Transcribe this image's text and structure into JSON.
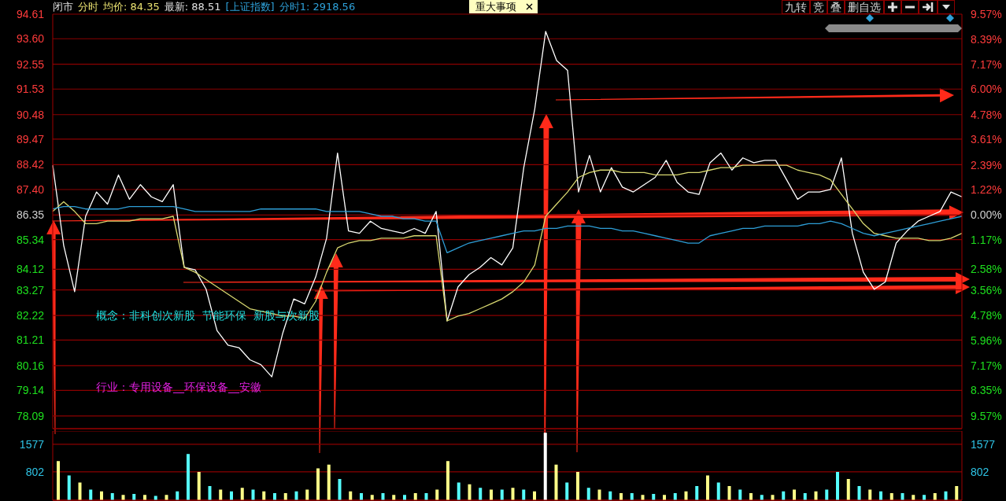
{
  "chart_data": [
    {
      "type": "line",
      "annotations": [
        "闭市",
        "分时",
        "均价: 84.35",
        "最新: 88.51",
        "[上证指数]",
        "分时1: 2918.56",
        "重大事项",
        "九转",
        "竞",
        "叠",
        "删自选",
        "概念：非科创次新股  节能环保  新股与次新股",
        "行业：专用设备__环保设备__安徽"
      ],
      "categories": [
        null,
        null,
        null,
        null,
        null,
        null,
        null,
        null,
        null,
        null,
        null,
        null,
        null,
        null,
        null,
        null,
        null,
        null,
        null,
        null,
        null,
        null,
        null,
        null,
        null,
        null,
        null,
        null,
        null,
        null,
        null,
        null,
        null,
        null,
        null,
        null,
        null,
        null,
        null,
        null,
        null,
        null,
        null,
        null,
        null,
        null,
        null,
        null,
        null,
        null,
        null,
        null,
        null,
        null,
        null,
        null,
        null,
        null,
        null,
        null,
        null,
        null,
        null,
        null,
        null,
        null,
        null,
        null,
        null,
        null,
        null,
        null,
        null,
        null,
        null,
        null,
        null,
        null,
        null,
        null,
        null,
        null,
        null,
        null
      ],
      "series": [
        {
          "color": "#ffffff",
          "values": [
            88.4,
            85.1,
            83.2,
            86.3,
            87.3,
            86.8,
            88.0,
            87.0,
            87.6,
            87.1,
            86.9,
            87.6,
            84.2,
            84.1,
            83.3,
            81.6,
            81.0,
            80.9,
            80.4,
            80.2,
            79.7,
            81.5,
            82.9,
            82.7,
            83.8,
            85.4,
            88.9,
            85.7,
            85.6,
            86.1,
            85.8,
            85.7,
            85.6,
            85.8,
            85.6,
            86.5,
            82.0,
            83.4,
            83.9,
            84.2,
            84.6,
            84.3,
            85.0,
            88.3,
            90.7,
            93.9,
            92.7,
            92.3,
            87.3,
            88.8,
            87.3,
            88.3,
            87.5,
            87.3,
            87.6,
            87.9,
            88.6,
            87.7,
            87.3,
            87.2,
            88.5,
            88.9,
            88.2,
            88.7,
            88.5,
            88.6,
            88.6,
            87.8,
            87.0,
            87.3,
            87.3,
            87.4,
            88.7,
            85.6,
            84.0,
            83.3,
            83.6,
            85.2,
            85.7,
            86.1,
            86.3,
            86.5,
            87.3,
            87.1
          ]
        },
        {
          "color": "#d8d870",
          "values": [
            86.5,
            86.9,
            86.5,
            86.0,
            86.0,
            86.1,
            86.1,
            86.1,
            86.2,
            86.2,
            86.2,
            86.3,
            84.2,
            84.0,
            83.7,
            83.4,
            83.1,
            82.8,
            82.5,
            82.4,
            82.3,
            82.2,
            82.2,
            82.1,
            82.8,
            84.0,
            85.0,
            85.2,
            85.3,
            85.3,
            85.4,
            85.4,
            85.4,
            85.5,
            85.5,
            85.5,
            82.0,
            82.2,
            82.3,
            82.5,
            82.7,
            82.9,
            83.2,
            83.6,
            84.3,
            86.3,
            86.8,
            87.3,
            87.9,
            88.1,
            88.2,
            88.2,
            88.1,
            88.1,
            88.1,
            88.0,
            88.0,
            88.0,
            88.1,
            88.1,
            88.2,
            88.3,
            88.3,
            88.4,
            88.4,
            88.4,
            88.4,
            88.4,
            88.2,
            88.1,
            88.0,
            87.8,
            87.2,
            86.6,
            86.0,
            85.6,
            85.5,
            85.4,
            85.4,
            85.4,
            85.3,
            85.3,
            85.4,
            85.6
          ]
        },
        {
          "color": "#2e9fd8",
          "values": [
            86.6,
            86.7,
            86.7,
            86.6,
            86.6,
            86.6,
            86.6,
            86.7,
            86.7,
            86.7,
            86.7,
            86.7,
            86.6,
            86.5,
            86.5,
            86.5,
            86.5,
            86.5,
            86.5,
            86.6,
            86.6,
            86.6,
            86.6,
            86.6,
            86.6,
            86.5,
            86.5,
            86.5,
            86.5,
            86.4,
            86.3,
            86.3,
            86.2,
            86.2,
            86.1,
            86.1,
            84.8,
            85.0,
            85.2,
            85.3,
            85.4,
            85.5,
            85.6,
            85.7,
            85.7,
            85.8,
            85.8,
            85.9,
            85.9,
            85.9,
            85.8,
            85.8,
            85.7,
            85.7,
            85.6,
            85.5,
            85.4,
            85.3,
            85.2,
            85.2,
            85.5,
            85.6,
            85.7,
            85.8,
            85.8,
            85.9,
            85.9,
            85.9,
            85.9,
            86.0,
            86.0,
            86.1,
            86.0,
            85.8,
            85.6,
            85.5,
            85.6,
            85.7,
            85.8,
            85.9,
            86.0,
            86.1,
            86.2,
            86.3
          ]
        }
      ],
      "ylim": [
        77.57,
        94.61
      ],
      "yticks": [
        78.09,
        79.14,
        80.16,
        81.21,
        82.22,
        83.27,
        84.12,
        85.34,
        86.35,
        {
          "value": 87.4,
          "label": "87.40"
        },
        88.42,
        89.47,
        90.48,
        91.53,
        92.55,
        {
          "value": 93.6,
          "label": "93.60"
        },
        94.61
      ],
      "y2lim": [
        -10.17,
        9.57
      ],
      "y2ticks": [
        {
          "value": -9.57,
          "label": "9.57%"
        },
        {
          "value": -8.35,
          "label": "8.35%"
        },
        {
          "value": -7.17,
          "label": "7.17%"
        },
        {
          "value": -5.96,
          "label": "5.96%"
        },
        {
          "value": -4.78,
          "label": "4.78%"
        },
        {
          "value": -3.56,
          "label": "3.56%"
        },
        {
          "value": -2.58,
          "label": "2.58%"
        },
        {
          "value": -1.17,
          "label": "1.17%"
        },
        {
          "value": 0,
          "label": "0.00%"
        },
        {
          "value": 1.22,
          "label": "1.22%"
        },
        {
          "value": 2.39,
          "label": "2.39%"
        },
        {
          "value": 3.61,
          "label": "3.61%"
        },
        {
          "value": 4.78,
          "label": "4.78%"
        },
        {
          "value": 6.0,
          "label": "6.00%"
        },
        {
          "value": 7.17,
          "label": "7.17%"
        },
        {
          "value": 8.39,
          "label": "8.39%"
        },
        {
          "value": 9.57,
          "label": "9.57%"
        }
      ],
      "grid": "y",
      "tick_labels": "y",
      "marker": "none",
      "line_style": "solid"
    },
    {
      "type": "bar",
      "categories": [
        null,
        null,
        null,
        null,
        null,
        null,
        null,
        null,
        null,
        null,
        null,
        null,
        null,
        null,
        null,
        null,
        null,
        null,
        null,
        null,
        null,
        null,
        null,
        null,
        null,
        null,
        null,
        null,
        null,
        null,
        null,
        null,
        null,
        null,
        null,
        null,
        null,
        null,
        null,
        null,
        null,
        null,
        null,
        null,
        null,
        null,
        null,
        null,
        null,
        null,
        null,
        null,
        null,
        null,
        null,
        null,
        null,
        null,
        null,
        null,
        null,
        null,
        null,
        null,
        null,
        null,
        null,
        null,
        null,
        null,
        null,
        null,
        null,
        null,
        null,
        null,
        null,
        null,
        null,
        null,
        null,
        null,
        null,
        null
      ],
      "values": [
        1100,
        700,
        500,
        300,
        250,
        200,
        150,
        180,
        150,
        120,
        150,
        250,
        1300,
        800,
        400,
        300,
        250,
        350,
        300,
        250,
        200,
        200,
        250,
        300,
        900,
        1000,
        600,
        250,
        200,
        150,
        200,
        150,
        150,
        200,
        200,
        300,
        1100,
        500,
        450,
        350,
        300,
        300,
        350,
        300,
        250,
        1900,
        1000,
        500,
        800,
        350,
        300,
        250,
        200,
        200,
        150,
        180,
        150,
        200,
        250,
        400,
        700,
        500,
        400,
        300,
        200,
        150,
        150,
        250,
        300,
        200,
        250,
        300,
        800,
        600,
        400,
        300,
        250,
        200,
        200,
        150,
        150,
        200,
        250,
        400
      ],
      "colors": [
        "#ffff88",
        "#55ffff",
        "#ffff88",
        "#55ffff",
        "#ffff88",
        "#55ffff",
        "#ffff88",
        "#55ffff",
        "#ffff88",
        "#55ffff",
        "#ffff88",
        "#55ffff",
        "#55ffff",
        "#ffff88",
        "#55ffff",
        "#ffff88",
        "#55ffff",
        "#ffff88",
        "#55ffff",
        "#ffff88",
        "#55ffff",
        "#ffff88",
        "#55ffff",
        "#ffff88",
        "#ffff88",
        "#ffff88",
        "#55ffff",
        "#ffff88",
        "#55ffff",
        "#ffff88",
        "#55ffff",
        "#ffff88",
        "#55ffff",
        "#ffff88",
        "#55ffff",
        "#ffff88",
        "#ffff88",
        "#55ffff",
        "#ffff88",
        "#55ffff",
        "#ffff88",
        "#55ffff",
        "#ffff88",
        "#55ffff",
        "#ffff88",
        "#ffffff",
        "#ffff88",
        "#55ffff",
        "#ffff88",
        "#55ffff",
        "#ffff88",
        "#55ffff",
        "#ffff88",
        "#55ffff",
        "#ffff88",
        "#55ffff",
        "#ffff88",
        "#55ffff",
        "#ffff88",
        "#55ffff",
        "#ffff88",
        "#55ffff",
        "#ffff88",
        "#55ffff",
        "#ffff88",
        "#55ffff",
        "#ffff88",
        "#55ffff",
        "#ffff88",
        "#55ffff",
        "#ffff88",
        "#55ffff",
        "#55ffff",
        "#ffff88",
        "#55ffff",
        "#ffff88",
        "#55ffff",
        "#ffff88",
        "#55ffff",
        "#ffff88",
        "#55ffff",
        "#ffff88",
        "#55ffff",
        "#ffff88"
      ],
      "ylim": [
        0,
        1950
      ],
      "yticks": [
        802,
        1577
      ],
      "y2lim": [
        0,
        1950
      ],
      "y2ticks": [
        802,
        1577
      ],
      "grid": "y",
      "tick_labels": "y"
    }
  ]
}
